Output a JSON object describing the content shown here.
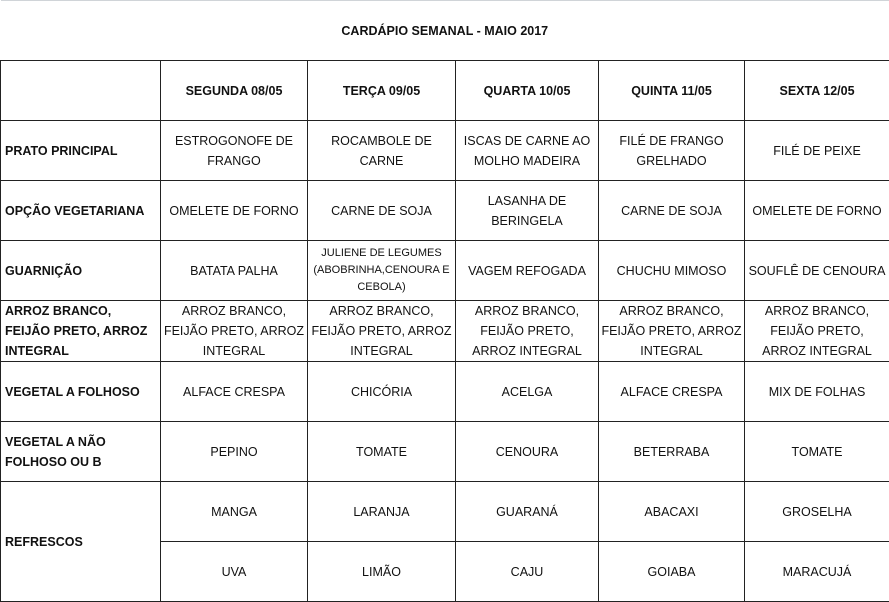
{
  "title": "CARDÁPIO SEMANAL - MAIO 2017",
  "days": [
    "SEGUNDA   08/05",
    "TERÇA  09/05",
    "QUARTA 10/05",
    "QUINTA 11/05",
    "SEXTA 12/05"
  ],
  "rows": [
    {
      "label": "PRATO PRINCIPAL",
      "cells": [
        "ESTROGONOFE DE FRANGO",
        "ROCAMBOLE DE CARNE",
        "ISCAS DE CARNE AO MOLHO MADEIRA",
        "FILÉ DE FRANGO GRELHADO",
        "FILÉ DE PEIXE"
      ]
    },
    {
      "label": "OPÇÃO VEGETARIANA",
      "cells": [
        "OMELETE DE FORNO",
        "CARNE DE SOJA",
        "LASANHA DE BERINGELA",
        "CARNE DE SOJA",
        "OMELETE DE FORNO"
      ]
    },
    {
      "label": "GUARNIÇÃO",
      "cells": [
        "BATATA PALHA",
        "JULIENE DE LEGUMES (ABOBRINHA,CENOURA  E CEBOLA)",
        "VAGEM  REFOGADA",
        "CHUCHU MIMOSO",
        "SOUFLÊ DE CENOURA"
      ]
    },
    {
      "label": "ARROZ BRANCO, FEIJÃO PRETO, ARROZ INTEGRAL",
      "cells": [
        "ARROZ BRANCO, FEIJÃO PRETO, ARROZ INTEGRAL",
        "ARROZ BRANCO, FEIJÃO PRETO, ARROZ INTEGRAL",
        "ARROZ BRANCO, FEIJÃO PRETO, ARROZ INTEGRAL",
        "ARROZ BRANCO, FEIJÃO PRETO, ARROZ INTEGRAL",
        "ARROZ BRANCO, FEIJÃO PRETO, ARROZ INTEGRAL"
      ]
    },
    {
      "label": "VEGETAL A FOLHOSO",
      "cells": [
        "ALFACE CRESPA",
        "CHICÓRIA",
        "ACELGA",
        "ALFACE CRESPA",
        "MIX DE FOLHAS"
      ]
    },
    {
      "label": "VEGETAL A NÃO FOLHOSO OU B",
      "cells": [
        "PEPINO",
        "TOMATE",
        "CENOURA",
        "BETERRABA",
        "TOMATE"
      ]
    }
  ],
  "refrescos": {
    "label": "REFRESCOS",
    "row1": [
      "MANGA",
      "LARANJA",
      "GUARANÁ",
      "ABACAXI",
      "GROSELHA"
    ],
    "row2": [
      "UVA",
      "LIMÃO",
      "CAJU",
      "GOIABA",
      "MARACUJÁ"
    ]
  }
}
